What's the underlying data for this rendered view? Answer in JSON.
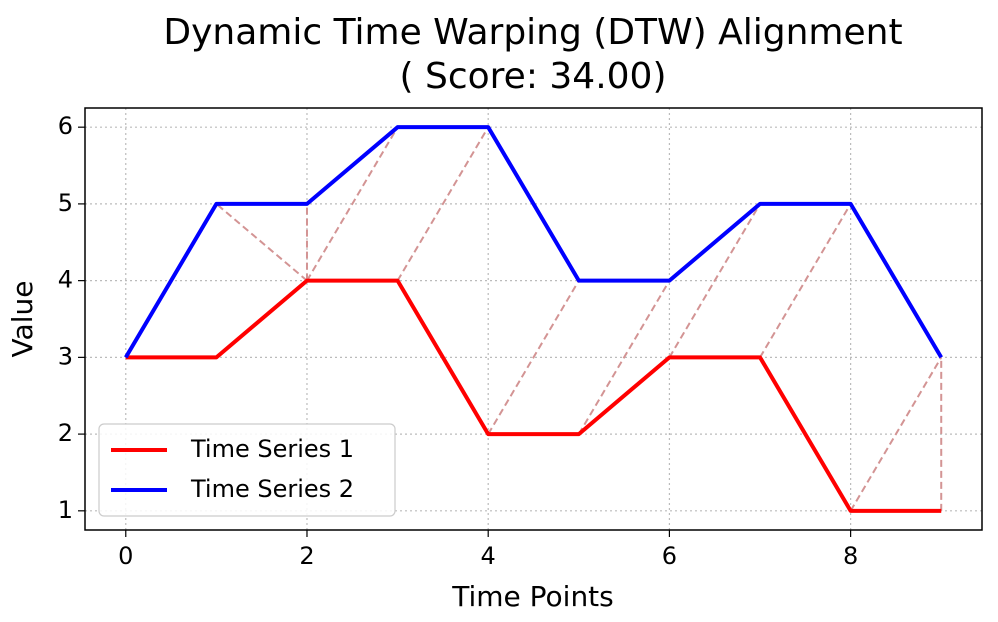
{
  "chart_data": {
    "type": "line",
    "title": [
      "Dynamic Time Warping (DTW) Alignment",
      "( Score: 34.00)"
    ],
    "xlabel": "Time Points",
    "ylabel": "Value",
    "x": [
      0,
      1,
      2,
      3,
      4,
      5,
      6,
      7,
      8,
      9
    ],
    "series": [
      {
        "name": "Time Series 1",
        "color": "#ff0000",
        "values": [
          3,
          3,
          4,
          4,
          2,
          2,
          3,
          3,
          1,
          1
        ]
      },
      {
        "name": "Time Series 2",
        "color": "#0000ff",
        "values": [
          3,
          5,
          5,
          6,
          6,
          4,
          4,
          5,
          5,
          3
        ]
      }
    ],
    "alignment": [
      [
        0,
        0
      ],
      [
        1,
        0
      ],
      [
        2,
        1
      ],
      [
        2,
        2
      ],
      [
        2,
        3
      ],
      [
        3,
        4
      ],
      [
        4,
        5
      ],
      [
        5,
        6
      ],
      [
        6,
        7
      ],
      [
        7,
        8
      ],
      [
        8,
        9
      ],
      [
        9,
        9
      ]
    ],
    "alignment_color": "#d39494",
    "xlim": [
      -0.45,
      9.45
    ],
    "xticks": [
      0,
      2,
      4,
      6,
      8
    ],
    "ylim": [
      0.75,
      6.25
    ],
    "yticks": [
      1,
      2,
      3,
      4,
      5,
      6
    ],
    "grid": true,
    "legend": "lower left"
  }
}
